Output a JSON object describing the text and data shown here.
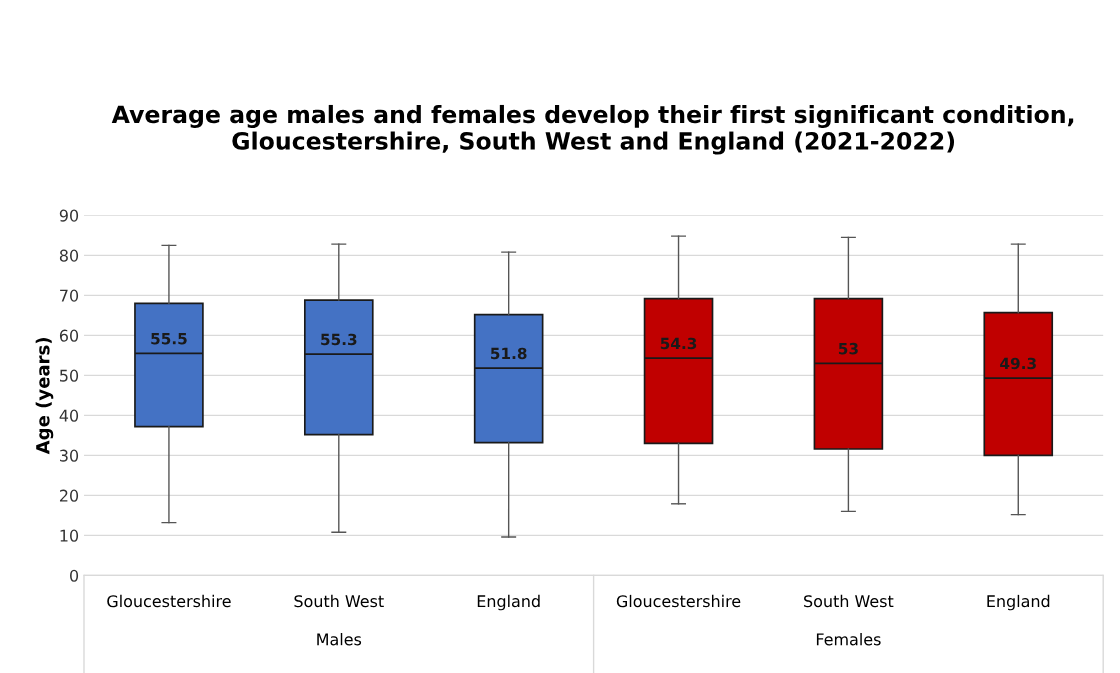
{
  "chart_data": {
    "type": "box",
    "title": "Average age males and females develop their first significant condition, Gloucestershire, South West and England (2021-2022)",
    "ylabel": "Age (years)",
    "categories": [
      "Gloucestershire",
      "South West",
      "England",
      "Gloucestershire",
      "South West",
      "England"
    ],
    "annotations": [
      "Males",
      "Females"
    ],
    "series": [
      {
        "color": "#4472c4",
        "value_labels": [
          "55.5",
          "55.3",
          "51.8",
          null,
          null,
          null
        ],
        "boxes": [
          {
            "low": 13.2,
            "q1": 37.2,
            "median": 55.5,
            "q3": 68.0,
            "high": 82.5
          },
          {
            "low": 10.8,
            "q1": 35.2,
            "median": 55.3,
            "q3": 68.8,
            "high": 82.8
          },
          {
            "low": 9.6,
            "q1": 33.2,
            "median": 51.8,
            "q3": 65.2,
            "high": 80.8
          },
          null,
          null,
          null
        ]
      },
      {
        "color": "#c00000",
        "value_labels": [
          null,
          null,
          null,
          "54.3",
          "53",
          "49.3"
        ],
        "boxes": [
          null,
          null,
          null,
          {
            "low": 17.9,
            "q1": 33.0,
            "median": 54.3,
            "q3": 69.2,
            "high": 84.8
          },
          {
            "low": 16.0,
            "q1": 31.6,
            "median": 53,
            "q3": 69.2,
            "high": 84.5
          },
          {
            "low": 15.2,
            "q1": 30.0,
            "median": 49.3,
            "q3": 65.7,
            "high": 82.8
          }
        ]
      }
    ],
    "ylim": [
      0,
      90
    ],
    "yticks": [
      0,
      10,
      20,
      30,
      40,
      50,
      60,
      70,
      80,
      90
    ],
    "grid": "y"
  }
}
